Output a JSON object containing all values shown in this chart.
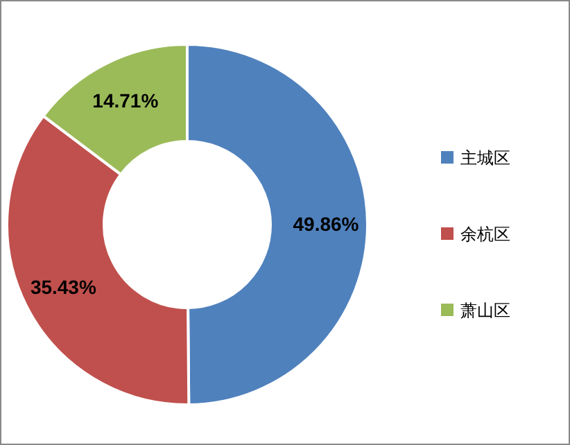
{
  "chart_data": {
    "type": "donut",
    "categories": [
      "主城区",
      "余杭区",
      "萧山区"
    ],
    "values": [
      49.86,
      35.43,
      14.71
    ],
    "colors": [
      "#4f81bd",
      "#c0504d",
      "#9bbb59"
    ],
    "value_labels": [
      "49.86%",
      "35.43%",
      "14.71%"
    ],
    "legend": "right"
  }
}
